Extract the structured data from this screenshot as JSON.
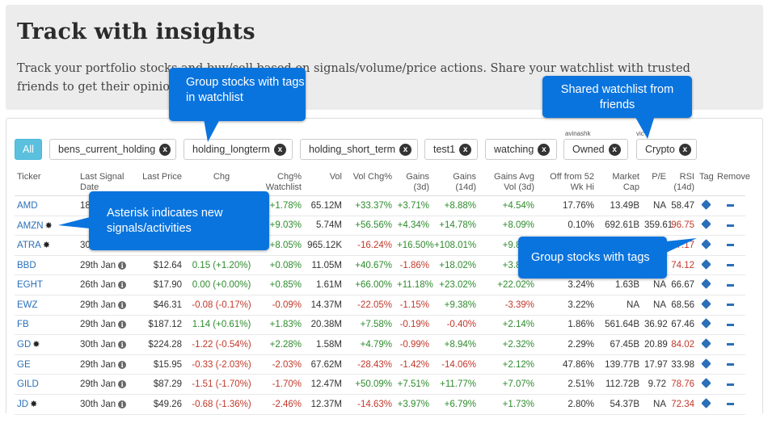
{
  "hero": {
    "title": "Track with insights",
    "desc_line1": "Track your portfolio stocks and buy/sell based on signals/volume/price actions. Share your watchlist with trusted",
    "desc_line2": "friends to get their opinions and research."
  },
  "tags": {
    "all_label": "All",
    "items": [
      {
        "label": "bens_current_holding",
        "owner": ""
      },
      {
        "label": "holding_longterm",
        "owner": ""
      },
      {
        "label": "holding_short_term",
        "owner": ""
      },
      {
        "label": "test1",
        "owner": ""
      },
      {
        "label": "watching",
        "owner": ""
      },
      {
        "label": "Owned",
        "owner": "avinashk"
      },
      {
        "label": "Crypto",
        "owner": "vic"
      }
    ],
    "remove_glyph": "x"
  },
  "table": {
    "headers": [
      "Ticker",
      "Last Signal Date",
      "Last Price",
      "Chg",
      "Chg% Watchlist",
      "Vol",
      "Vol Chg%",
      "Gains (3d)",
      "Gains (14d)",
      "Gains Avg Vol (3d)",
      "Off from 52 Wk Hi",
      "Market Cap",
      "P/E",
      "RSI (14d)",
      "Tag",
      "Remove"
    ],
    "rows": [
      {
        "ticker": "AMD",
        "star": false,
        "date": "18th Jan",
        "price": "",
        "chg": "",
        "chg_watch": "+1.78%",
        "vol": "65.12M",
        "vol_chg": "+33.37%",
        "g3": "+3.71%",
        "g14": "+8.88%",
        "gavg": "+4.54%",
        "off52": "17.76%",
        "mcap": "13.49B",
        "pe": "NA",
        "rsi": "58.47"
      },
      {
        "ticker": "AMZN",
        "star": true,
        "date": "",
        "price": "",
        "chg": "",
        "chg_watch": "+9.03%",
        "vol": "5.74M",
        "vol_chg": "+56.56%",
        "g3": "+4.34%",
        "g14": "+14.78%",
        "gavg": "+8.09%",
        "off52": "0.10%",
        "mcap": "692.61B",
        "pe": "359.61",
        "rsi": "96.75"
      },
      {
        "ticker": "ATRA",
        "star": true,
        "date": "30th Jan",
        "price": "",
        "chg": "",
        "chg_watch": "+8.05%",
        "vol": "965.12K",
        "vol_chg": "-16.24%",
        "g3": "+16.50%",
        "g14": "+108.01%",
        "gavg": "+9.84%",
        "off52": "",
        "mcap": "",
        "pe": "",
        "rsi": "87.17"
      },
      {
        "ticker": "BBD",
        "star": false,
        "date": "29th Jan",
        "price": "$12.64",
        "chg": "0.15 (+1.20%)",
        "chg_watch": "+0.08%",
        "vol": "11.05M",
        "vol_chg": "+40.67%",
        "g3": "-1.86%",
        "g14": "+18.02%",
        "gavg": "+3.83%",
        "off52": "",
        "mcap": "",
        "pe": "",
        "rsi": "74.12"
      },
      {
        "ticker": "EGHT",
        "star": false,
        "date": "26th Jan",
        "price": "$17.90",
        "chg": "0.00 (+0.00%)",
        "chg_watch": "+0.85%",
        "vol": "1.61M",
        "vol_chg": "+66.00%",
        "g3": "+11.18%",
        "g14": "+23.02%",
        "gavg": "+22.02%",
        "off52": "3.24%",
        "mcap": "1.63B",
        "pe": "NA",
        "rsi": "66.67"
      },
      {
        "ticker": "EWZ",
        "star": false,
        "date": "29th Jan",
        "price": "$46.31",
        "chg": "-0.08 (-0.17%)",
        "chg_watch": "-0.09%",
        "vol": "14.37M",
        "vol_chg": "-22.05%",
        "g3": "-1.15%",
        "g14": "+9.38%",
        "gavg": "-3.39%",
        "off52": "3.22%",
        "mcap": "NA",
        "pe": "NA",
        "rsi": "68.56"
      },
      {
        "ticker": "FB",
        "star": false,
        "date": "29th Jan",
        "price": "$187.12",
        "chg": "1.14 (+0.61%)",
        "chg_watch": "+1.83%",
        "vol": "20.38M",
        "vol_chg": "+7.58%",
        "g3": "-0.19%",
        "g14": "-0.40%",
        "gavg": "+2.14%",
        "off52": "1.86%",
        "mcap": "561.64B",
        "pe": "36.92",
        "rsi": "67.46"
      },
      {
        "ticker": "GD",
        "star": true,
        "date": "30th Jan",
        "price": "$224.28",
        "chg": "-1.22 (-0.54%)",
        "chg_watch": "+2.28%",
        "vol": "1.58M",
        "vol_chg": "+4.79%",
        "g3": "-0.99%",
        "g14": "+8.94%",
        "gavg": "+2.32%",
        "off52": "2.29%",
        "mcap": "67.45B",
        "pe": "20.89",
        "rsi": "84.02"
      },
      {
        "ticker": "GE",
        "star": false,
        "date": "29th Jan",
        "price": "$15.95",
        "chg": "-0.33 (-2.03%)",
        "chg_watch": "-2.03%",
        "vol": "67.62M",
        "vol_chg": "-28.43%",
        "g3": "-1.42%",
        "g14": "-14.06%",
        "gavg": "+2.12%",
        "off52": "47.86%",
        "mcap": "139.77B",
        "pe": "17.97",
        "rsi": "33.98"
      },
      {
        "ticker": "GILD",
        "star": false,
        "date": "29th Jan",
        "price": "$87.29",
        "chg": "-1.51 (-1.70%)",
        "chg_watch": "-1.70%",
        "vol": "12.47M",
        "vol_chg": "+50.09%",
        "g3": "+7.51%",
        "g14": "+11.77%",
        "gavg": "+7.07%",
        "off52": "2.51%",
        "mcap": "112.72B",
        "pe": "9.72",
        "rsi": "78.76"
      },
      {
        "ticker": "JD",
        "star": true,
        "date": "30th Jan",
        "price": "$49.26",
        "chg": "-0.68 (-1.36%)",
        "chg_watch": "-2.46%",
        "vol": "12.37M",
        "vol_chg": "-14.63%",
        "g3": "+3.97%",
        "g14": "+6.79%",
        "gavg": "+1.73%",
        "off52": "2.80%",
        "mcap": "54.37B",
        "pe": "NA",
        "rsi": "72.34"
      }
    ],
    "rsi_red_threshold_note": "",
    "star_glyph": "✸"
  },
  "callouts": {
    "tags_watchlist": "Group stocks with tags in watchlist",
    "shared": "Shared watchlist from friends",
    "asterisk": "Asterisk indicates new signals/activities",
    "group_tags": "Group stocks with tags"
  },
  "colors": {
    "accent": "#2a6fb8",
    "positive": "#2e8b2e",
    "negative": "#c0392b",
    "callout": "#0a74de",
    "all_chip": "#5bc0de"
  }
}
